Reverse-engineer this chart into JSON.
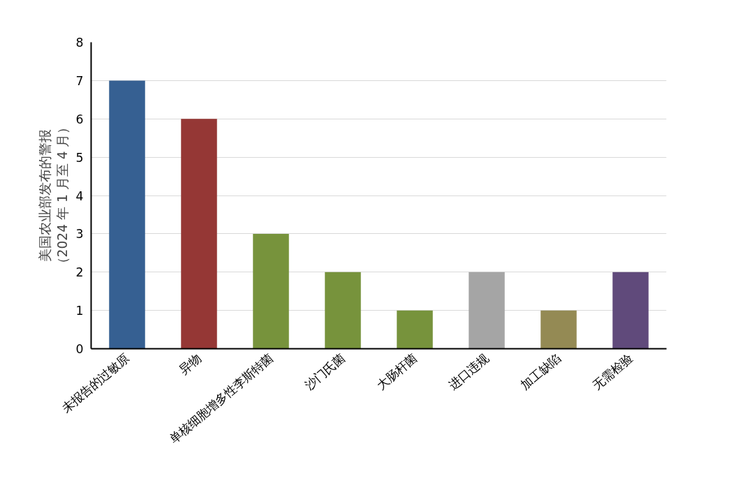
{
  "chart_data": {
    "type": "bar",
    "ylabel": "美国农业部发布的警报（2024 年 1 月至 4 月）",
    "categories": [
      "未报告的过敏原",
      "异物",
      "单核细胞增多性李斯特菌",
      "沙门氏菌",
      "大肠杆菌",
      "进口违规",
      "加工缺陷",
      "无需检验"
    ],
    "values": [
      7,
      6,
      3,
      2,
      1,
      2,
      1,
      2
    ],
    "colors": [
      "#366092",
      "#953735",
      "#77933c",
      "#77933c",
      "#77933c",
      "#a5a5a5",
      "#948a54",
      "#604a7b"
    ],
    "ylim": [
      0,
      8
    ],
    "yticks": [
      0,
      1,
      2,
      3,
      4,
      5,
      6,
      7,
      8
    ],
    "grid": "y"
  }
}
